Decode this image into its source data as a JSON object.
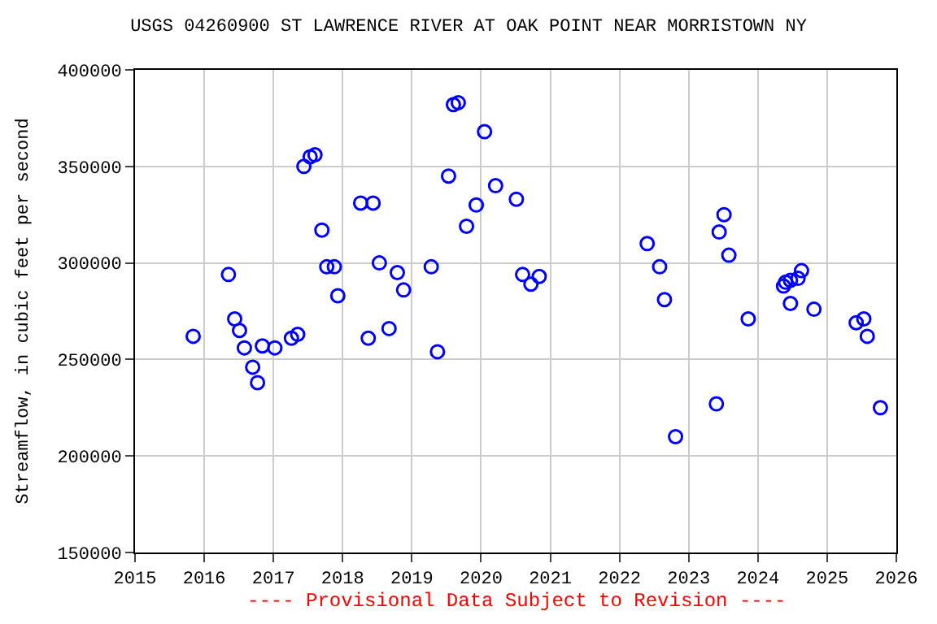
{
  "chart_data": {
    "type": "scatter",
    "title": "USGS 04260900 ST LAWRENCE RIVER AT OAK POINT NEAR MORRISTOWN NY",
    "ylabel": "Streamflow, in cubic feet per second",
    "annotations": [
      "---- Provisional Data Subject to Revision ----"
    ],
    "xlim": [
      2015,
      2026
    ],
    "xticks": [
      2015,
      2016,
      2017,
      2018,
      2019,
      2020,
      2021,
      2022,
      2023,
      2024,
      2025,
      2026
    ],
    "ylim": [
      150000,
      400000
    ],
    "yticks": [
      150000,
      200000,
      250000,
      300000,
      350000,
      400000
    ],
    "grid": true,
    "marker": "circle",
    "series": [
      {
        "color": "#0000ff",
        "x": [
          2015.84,
          2016.35,
          2016.44,
          2016.51,
          2016.58,
          2016.7,
          2016.77,
          2016.84,
          2017.02,
          2017.26,
          2017.35,
          2017.44,
          2017.53,
          2017.6,
          2017.7,
          2017.77,
          2017.88,
          2017.93,
          2018.26,
          2018.37,
          2018.44,
          2018.53,
          2018.67,
          2018.79,
          2018.88,
          2019.28,
          2019.37,
          2019.53,
          2019.6,
          2019.67,
          2019.79,
          2019.93,
          2020.05,
          2020.21,
          2020.51,
          2020.6,
          2020.72,
          2020.84,
          2022.4,
          2022.58,
          2022.65,
          2022.81,
          2023.4,
          2023.44,
          2023.51,
          2023.58,
          2023.86,
          2024.37,
          2024.4,
          2024.47,
          2024.47,
          2024.58,
          2024.63,
          2024.81,
          2025.42,
          2025.53,
          2025.58,
          2025.77
        ],
        "values": [
          262000,
          294000,
          271000,
          265000,
          256000,
          246000,
          238000,
          257000,
          256000,
          261000,
          263000,
          350000,
          355000,
          356000,
          317000,
          298000,
          298000,
          283000,
          331000,
          261000,
          331000,
          300000,
          266000,
          295000,
          286000,
          298000,
          254000,
          345000,
          382000,
          383000,
          319000,
          330000,
          368000,
          340000,
          333000,
          294000,
          289000,
          293000,
          310000,
          298000,
          281000,
          210000,
          227000,
          316000,
          325000,
          304000,
          271000,
          288000,
          290000,
          291000,
          279000,
          292000,
          296000,
          276000,
          269000,
          271000,
          262000,
          225000
        ]
      }
    ]
  }
}
